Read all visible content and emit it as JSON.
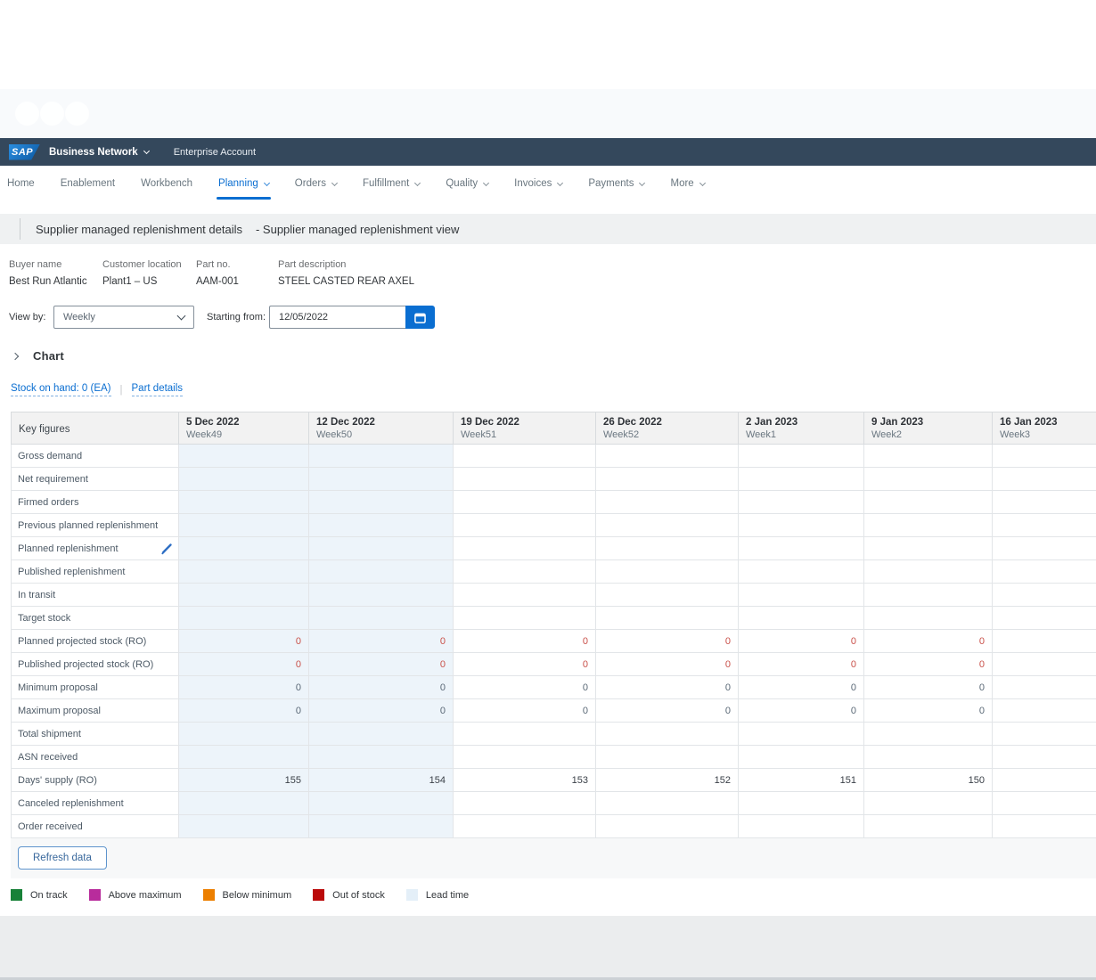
{
  "brand": {
    "logo_text": "SAP",
    "product": "Business Network",
    "account_type": "Enterprise Account"
  },
  "nav": {
    "items": [
      {
        "label": "Home",
        "caret": false,
        "active": false
      },
      {
        "label": "Enablement",
        "caret": false,
        "active": false
      },
      {
        "label": "Workbench",
        "caret": false,
        "active": false
      },
      {
        "label": "Planning",
        "caret": true,
        "active": true
      },
      {
        "label": "Orders",
        "caret": true,
        "active": false
      },
      {
        "label": "Fulfillment",
        "caret": true,
        "active": false
      },
      {
        "label": "Quality",
        "caret": true,
        "active": false
      },
      {
        "label": "Invoices",
        "caret": true,
        "active": false
      },
      {
        "label": "Payments",
        "caret": true,
        "active": false
      },
      {
        "label": "More",
        "caret": true,
        "active": false
      }
    ]
  },
  "page": {
    "title": "Supplier managed replenishment details",
    "subtitle": "- Supplier managed replenishment view"
  },
  "info_fields": [
    {
      "label": "Buyer name",
      "value": "Best Run Atlantic"
    },
    {
      "label": "Customer location",
      "value": "Plant1 – US"
    },
    {
      "label": "Part no.",
      "value": "AAM-001"
    },
    {
      "label": "Part description",
      "value": "STEEL CASTED REAR AXEL"
    }
  ],
  "controls": {
    "view_by_label": "View by:",
    "view_by_value": "Weekly",
    "starting_from_label": "Starting from:",
    "starting_from_value": "12/05/2022"
  },
  "chart_section": {
    "label": "Chart"
  },
  "links": {
    "stock_on_hand": "Stock on hand: 0  (EA)",
    "separator": "|",
    "part_details": "Part details"
  },
  "table": {
    "key_figures_header": "Key figures",
    "columns": [
      {
        "date": "5 Dec 2022",
        "week": "Week49"
      },
      {
        "date": "12 Dec 2022",
        "week": "Week50"
      },
      {
        "date": "19 Dec 2022",
        "week": "Week51"
      },
      {
        "date": "26 Dec 2022",
        "week": "Week52"
      },
      {
        "date": "2 Jan 2023",
        "week": "Week1"
      },
      {
        "date": "9 Jan 2023",
        "week": "Week2"
      },
      {
        "date": "16 Jan 2023",
        "week": "Week3"
      }
    ],
    "lead_time_columns": [
      0,
      1
    ],
    "rows": [
      {
        "label": "Gross demand",
        "values": [
          "",
          "",
          "",
          "",
          "",
          "",
          ""
        ],
        "value_color": "dark",
        "editable": false
      },
      {
        "label": "Net requirement",
        "values": [
          "",
          "",
          "",
          "",
          "",
          "",
          ""
        ],
        "value_color": "dark",
        "editable": false
      },
      {
        "label": "Firmed orders",
        "values": [
          "",
          "",
          "",
          "",
          "",
          "",
          ""
        ],
        "value_color": "dark",
        "editable": false
      },
      {
        "label": "Previous planned replenishment",
        "values": [
          "",
          "",
          "",
          "",
          "",
          "",
          ""
        ],
        "value_color": "dark",
        "editable": false
      },
      {
        "label": "Planned replenishment",
        "values": [
          "",
          "",
          "",
          "",
          "",
          "",
          ""
        ],
        "value_color": "dark",
        "editable": true
      },
      {
        "label": "Published replenishment",
        "values": [
          "",
          "",
          "",
          "",
          "",
          "",
          ""
        ],
        "value_color": "dark",
        "editable": false
      },
      {
        "label": "In transit",
        "values": [
          "",
          "",
          "",
          "",
          "",
          "",
          ""
        ],
        "value_color": "dark",
        "editable": false
      },
      {
        "label": "Target stock",
        "values": [
          "",
          "",
          "",
          "",
          "",
          "",
          ""
        ],
        "value_color": "dark",
        "editable": false
      },
      {
        "label": "Planned projected stock (RO)",
        "values": [
          "0",
          "0",
          "0",
          "0",
          "0",
          "0",
          ""
        ],
        "value_color": "negative",
        "editable": false
      },
      {
        "label": "Published projected stock (RO)",
        "values": [
          "0",
          "0",
          "0",
          "0",
          "0",
          "0",
          ""
        ],
        "value_color": "negative",
        "editable": false
      },
      {
        "label": "Minimum proposal",
        "values": [
          "0",
          "0",
          "0",
          "0",
          "0",
          "0",
          ""
        ],
        "value_color": "neutral",
        "editable": false
      },
      {
        "label": "Maximum proposal",
        "values": [
          "0",
          "0",
          "0",
          "0",
          "0",
          "0",
          ""
        ],
        "value_color": "neutral",
        "editable": false
      },
      {
        "label": "Total shipment",
        "values": [
          "",
          "",
          "",
          "",
          "",
          "",
          ""
        ],
        "value_color": "dark",
        "editable": false
      },
      {
        "label": "ASN received",
        "values": [
          "",
          "",
          "",
          "",
          "",
          "",
          ""
        ],
        "value_color": "dark",
        "editable": false
      },
      {
        "label": "Days' supply (RO)",
        "values": [
          "155",
          "154",
          "153",
          "152",
          "151",
          "150",
          ""
        ],
        "value_color": "dark",
        "editable": false
      },
      {
        "label": "Canceled replenishment",
        "values": [
          "",
          "",
          "",
          "",
          "",
          "",
          ""
        ],
        "value_color": "dark",
        "editable": false
      },
      {
        "label": "Order received",
        "values": [
          "",
          "",
          "",
          "",
          "",
          "",
          ""
        ],
        "value_color": "dark",
        "editable": false
      }
    ]
  },
  "footer": {
    "refresh_button": "Refresh data"
  },
  "legend": [
    {
      "label": "On track",
      "color": "#188138"
    },
    {
      "label": "Above maximum",
      "color": "#b82c9c"
    },
    {
      "label": "Below minimum",
      "color": "#ec7f00"
    },
    {
      "label": "Out of stock",
      "color": "#bb0a0a"
    },
    {
      "label": "Lead time",
      "color": "#e4eff8"
    }
  ],
  "colors": {
    "accent_blue": "#0a6ed1",
    "navbar_bg": "#34485c",
    "negative_value": "#c9514a",
    "neutral_value": "#5a6876",
    "dark_value": "#3a4048",
    "lead_time_cell": "#edf4fa"
  }
}
